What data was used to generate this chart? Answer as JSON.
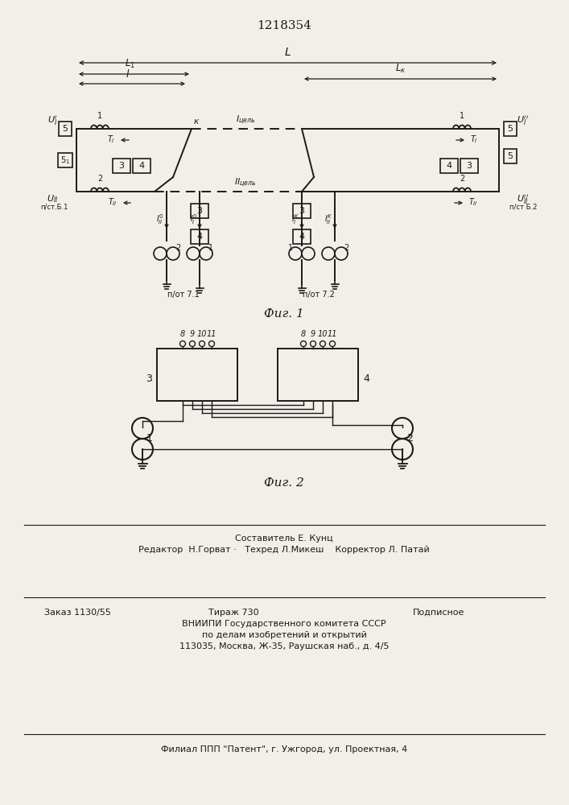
{
  "title": "1218354",
  "title_fontsize": 11,
  "fig1_caption": "Фиг. 1",
  "fig2_caption": "Фиг. 2",
  "background_color": "#f2efe9",
  "line_color": "#1a1a1a"
}
